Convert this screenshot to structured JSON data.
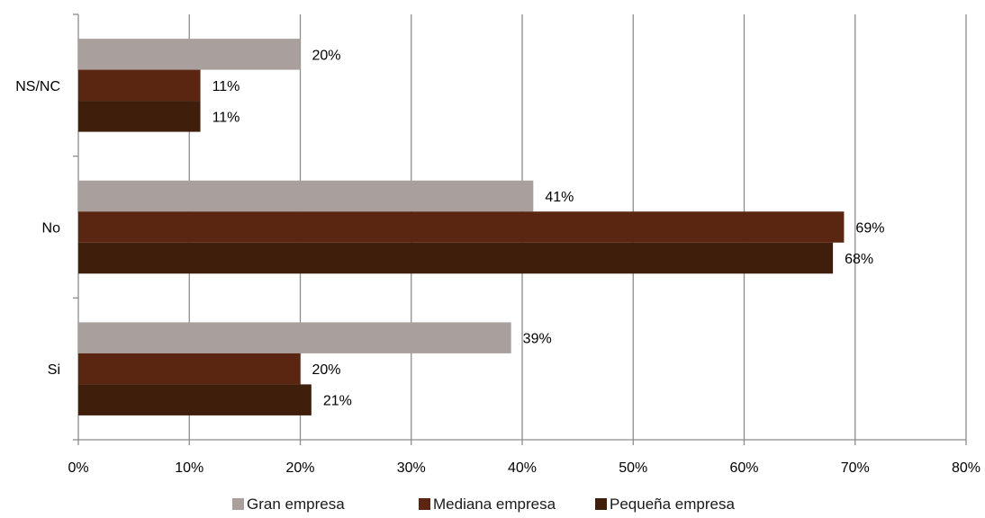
{
  "chart_data": {
    "type": "bar",
    "orientation": "horizontal",
    "categories": [
      "Si",
      "No",
      "NS/NC"
    ],
    "series": [
      {
        "name": "Gran empresa",
        "values": [
          39,
          41,
          20
        ],
        "labels": [
          "39%",
          "41%",
          "20%"
        ],
        "color": "#a9a09d"
      },
      {
        "name": "Mediana empresa",
        "values": [
          20,
          69,
          11
        ],
        "labels": [
          "20%",
          "69%",
          "11%"
        ],
        "color": "#5a2612"
      },
      {
        "name": "Pequeña empresa",
        "values": [
          21,
          68,
          11
        ],
        "labels": [
          "21%",
          "68%",
          "11%"
        ],
        "color": "#3f1e0c"
      }
    ],
    "xlim": [
      0,
      80
    ],
    "xticks": [
      0,
      10,
      20,
      30,
      40,
      50,
      60,
      70,
      80
    ],
    "xtick_labels": [
      "0%",
      "10%",
      "20%",
      "30%",
      "40%",
      "50%",
      "60%",
      "70%",
      "80%"
    ],
    "grid": "vertical",
    "legend_position": "bottom",
    "title": "",
    "xlabel": "",
    "ylabel": ""
  }
}
